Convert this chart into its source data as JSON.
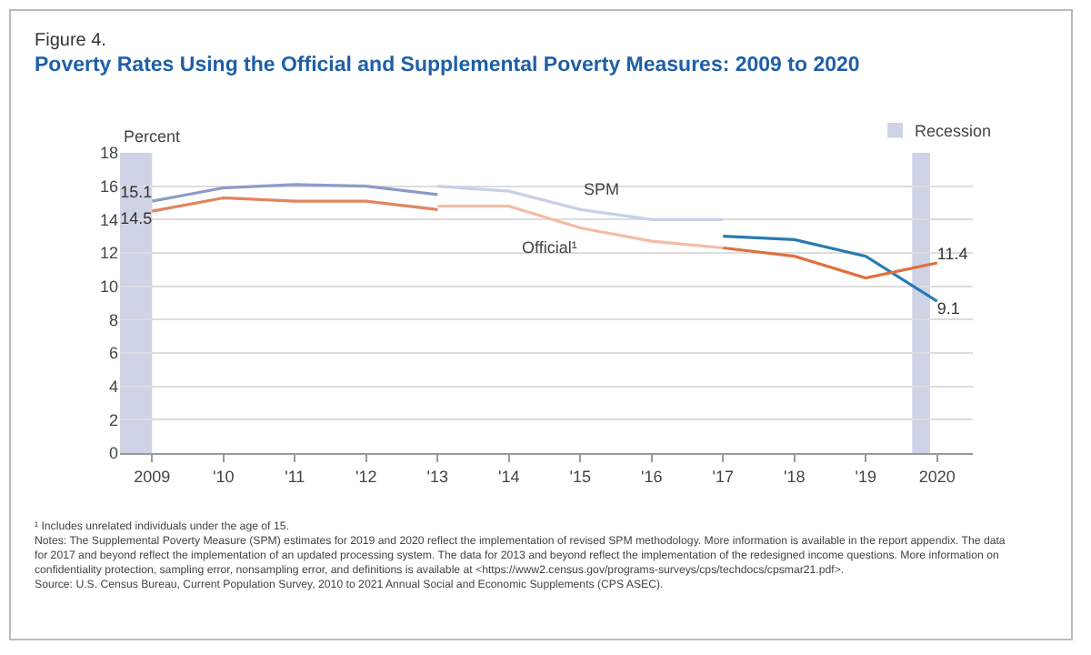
{
  "chart_data": {
    "type": "line",
    "title": "Poverty Rates Using the Official and Supplemental Poverty Measures: 2009 to 2020",
    "ylabel": "Percent",
    "annotations": [
      "Figure 4.",
      "¹ Includes unrelated individuals under the age of 15.",
      "Notes: The Supplemental Poverty Measure (SPM) estimates for 2019 and 2020 reflect the implementation of revised SPM methodology. More information is available in the report appendix. The data for 2017 and beyond reflect the implementation of an updated processing system. The data for 2013 and beyond reflect the implementation of the redesigned income questions. More information on confidentiality protection, sampling error, nonsampling error, and definitions is available at <https://www2.census.gov/programs-surveys/cps/techdocs/cpsmar21.pdf>.",
      "Source: U.S. Census Bureau, Current Population Survey, 2010 to 2021 Annual Social and Economic Supplements (CPS ASEC)."
    ],
    "series": [
      {
        "color": "#8e9bc9",
        "x": [
          2009,
          2010,
          2011,
          2012,
          2013
        ],
        "values": [
          15.1,
          15.9,
          16.1,
          16.0,
          15.5
        ],
        "value_labels": [
          "15.1",
          null,
          null,
          null,
          null
        ]
      },
      {
        "name": "SPM",
        "color": "#c9cfe8",
        "x": [
          2013,
          2014,
          2015,
          2016,
          2017
        ],
        "values": [
          16.0,
          15.7,
          14.6,
          14.0,
          14.0
        ]
      },
      {
        "color": "#2a7ab0",
        "x": [
          2017,
          2018,
          2019,
          2020
        ],
        "values": [
          13.0,
          12.8,
          11.8,
          9.1
        ],
        "value_labels": [
          null,
          null,
          null,
          "9.1"
        ]
      },
      {
        "color": "#e2845f",
        "x": [
          2009,
          2010,
          2011,
          2012,
          2013
        ],
        "values": [
          14.5,
          15.3,
          15.1,
          15.1,
          14.6
        ],
        "value_labels": [
          "14.5",
          null,
          null,
          null,
          null
        ]
      },
      {
        "name": "Official¹",
        "color": "#f3bca5",
        "x": [
          2013,
          2014,
          2015,
          2016,
          2017
        ],
        "values": [
          14.8,
          14.8,
          13.5,
          12.7,
          12.3
        ]
      },
      {
        "color": "#e0703f",
        "x": [
          2017,
          2018,
          2019,
          2020
        ],
        "values": [
          12.3,
          11.8,
          10.5,
          11.4
        ],
        "value_labels": [
          null,
          null,
          null,
          "11.4"
        ]
      }
    ],
    "xlim": [
      2008.55,
      2020.5
    ],
    "xticks": [
      {
        "value": 2009,
        "label": "2009"
      },
      {
        "value": 2010,
        "label": "'10"
      },
      {
        "value": 2011,
        "label": "'11"
      },
      {
        "value": 2012,
        "label": "'12"
      },
      {
        "value": 2013,
        "label": "'13"
      },
      {
        "value": 2014,
        "label": "'14"
      },
      {
        "value": 2015,
        "label": "'15"
      },
      {
        "value": 2016,
        "label": "'16"
      },
      {
        "value": 2017,
        "label": "'17"
      },
      {
        "value": 2018,
        "label": "'18"
      },
      {
        "value": 2019,
        "label": "'19"
      },
      {
        "value": 2020,
        "label": "2020"
      }
    ],
    "ylim": [
      0,
      18
    ],
    "yticks": [
      0,
      2,
      4,
      6,
      8,
      10,
      12,
      14,
      16,
      18
    ],
    "bands": [
      {
        "axis": "x",
        "from": 2008.55,
        "to": 2009,
        "label": "Recession",
        "color": "#cfd3e6"
      },
      {
        "axis": "x",
        "from": 2019.65,
        "to": 2019.9,
        "color": "#cfd3e6"
      }
    ],
    "grid": "y",
    "marker": "none",
    "line_style": "solid"
  }
}
